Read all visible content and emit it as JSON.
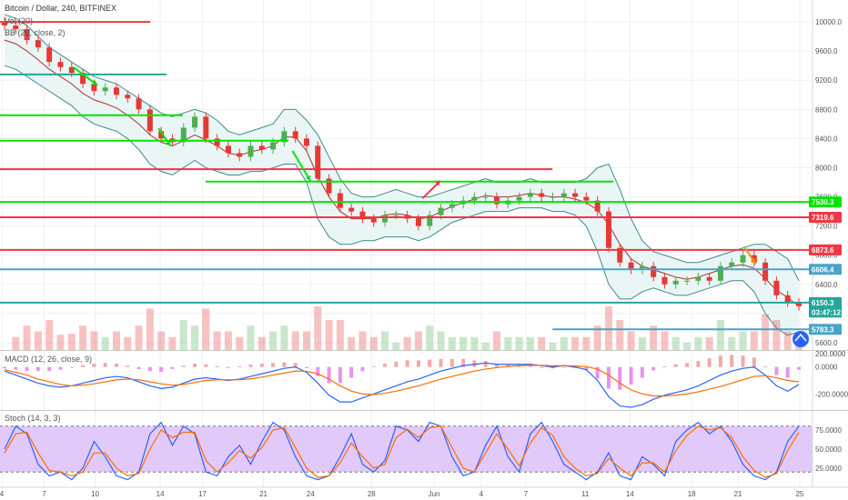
{
  "header": {
    "symbol_title": "Bitcoin / Dollar, 240, BITFINEX",
    "volume_label": "Vol (20)",
    "bb_label": "BB (20, close, 2)",
    "macd_label": "MACD (12, 26, close, 9)",
    "stoch_label": "Stoch (14, 3, 3)"
  },
  "colors": {
    "up": "#4caf50",
    "down": "#e53935",
    "bb_band": "#3d8b8b",
    "bb_fill": "#e6f4f4",
    "bb_mid": "#b03030",
    "red_level": "#f23645",
    "green_level": "#00e600",
    "teal_level": "#26a69a",
    "blue_level": "#4ba3c7",
    "macd_line": "#2962ff",
    "signal_line": "#ff6d00",
    "stoch_fill": "#e1c9f9",
    "stoch_k": "#2962ff",
    "stoch_d": "#ff6d00"
  },
  "icons": {
    "logo": "tradingview-logo-icon"
  },
  "chart_data": [
    {
      "type": "candlestick",
      "title": "Bitcoin / Dollar, 240, BITFINEX",
      "ylim": [
        5500,
        10300
      ],
      "y_ticks": [
        5600,
        6000,
        6400,
        6800,
        7200,
        7600,
        8000,
        8400,
        8800,
        9200,
        9600,
        10000
      ],
      "y_tick_labels": [
        "5600.0",
        "6000.0",
        "6400.0",
        "6800.0",
        "7200.0",
        "7600.0",
        "8000.0",
        "8400.0",
        "8800.0",
        "9200.0",
        "9600.0",
        "10000.0"
      ],
      "x_ticks": [
        "4",
        "7",
        "10",
        "14",
        "17",
        "21",
        "24",
        "28",
        "Jun",
        "4",
        "7",
        "11",
        "14",
        "18",
        "21",
        "25"
      ],
      "x_tick_pos": [
        0.0,
        0.052,
        0.115,
        0.195,
        0.247,
        0.322,
        0.38,
        0.455,
        0.532,
        0.59,
        0.645,
        0.718,
        0.773,
        0.849,
        0.906,
        0.982
      ],
      "price_points": [
        9950,
        9900,
        9750,
        9650,
        9450,
        9380,
        9300,
        9150,
        9050,
        9100,
        9000,
        8950,
        8800,
        8500,
        8400,
        8350,
        8550,
        8700,
        8400,
        8300,
        8200,
        8150,
        8300,
        8250,
        8350,
        8500,
        8400,
        8300,
        7850,
        7650,
        7450,
        7400,
        7300,
        7250,
        7350,
        7350,
        7300,
        7200,
        7350,
        7450,
        7500,
        7550,
        7600,
        7600,
        7500,
        7550,
        7600,
        7650,
        7600,
        7600,
        7650,
        7600,
        7550,
        7400,
        6900,
        6700,
        6600,
        6650,
        6500,
        6400,
        6450,
        6450,
        6500,
        6450,
        6650,
        6700,
        6800,
        6700,
        6450,
        6250,
        6150,
        6100
      ],
      "bb_upper": [
        10100,
        10050,
        9950,
        9800,
        9650,
        9550,
        9450,
        9350,
        9250,
        9200,
        9150,
        9050,
        8950,
        8850,
        8750,
        8700,
        8750,
        8800,
        8750,
        8650,
        8500,
        8450,
        8500,
        8550,
        8600,
        8800,
        8800,
        8650,
        8450,
        8150,
        7850,
        7650,
        7600,
        7600,
        7650,
        7700,
        7650,
        7600,
        7600,
        7650,
        7700,
        7750,
        7800,
        7850,
        7800,
        7800,
        7800,
        7850,
        7800,
        7800,
        7800,
        7800,
        7850,
        8000,
        8050,
        7700,
        7300,
        7000,
        6850,
        6800,
        6750,
        6700,
        6700,
        6750,
        6800,
        6850,
        6900,
        6950,
        6950,
        6850,
        6750,
        6450
      ],
      "bb_lower": [
        9400,
        9350,
        9250,
        9150,
        9050,
        8950,
        8850,
        8700,
        8600,
        8550,
        8500,
        8400,
        8250,
        8050,
        7950,
        7900,
        8000,
        8100,
        8000,
        7950,
        7900,
        7900,
        7950,
        7950,
        8000,
        8050,
        8050,
        7800,
        7300,
        7050,
        6950,
        6950,
        7000,
        7000,
        7050,
        7050,
        7050,
        7000,
        7050,
        7150,
        7250,
        7300,
        7350,
        7400,
        7400,
        7400,
        7450,
        7450,
        7450,
        7400,
        7400,
        7350,
        7200,
        6850,
        6400,
        6200,
        6200,
        6300,
        6350,
        6300,
        6250,
        6250,
        6300,
        6350,
        6400,
        6450,
        6450,
        6300,
        6000,
        5800,
        5700,
        5750
      ],
      "bb_basis": [
        9750,
        9700,
        9600,
        9480,
        9350,
        9250,
        9150,
        9020,
        8930,
        8880,
        8820,
        8720,
        8600,
        8450,
        8350,
        8300,
        8370,
        8450,
        8380,
        8300,
        8200,
        8170,
        8220,
        8250,
        8300,
        8420,
        8420,
        8230,
        7880,
        7600,
        7400,
        7300,
        7300,
        7300,
        7350,
        7370,
        7350,
        7300,
        7320,
        7400,
        7470,
        7520,
        7570,
        7620,
        7600,
        7600,
        7620,
        7650,
        7620,
        7600,
        7600,
        7570,
        7520,
        7420,
        7220,
        6950,
        6750,
        6650,
        6600,
        6550,
        6500,
        6470,
        6500,
        6550,
        6600,
        6650,
        6670,
        6620,
        6480,
        6320,
        6220,
        6100
      ],
      "horizontal_levels": [
        {
          "price": 10000,
          "color": "red",
          "x_end": 0.185
        },
        {
          "price": 9280,
          "color": "teal",
          "x_end": 0.205
        },
        {
          "price": 8720,
          "color": "green",
          "x_end": 0.225
        },
        {
          "price": 8370,
          "color": "green",
          "x_end": 0.355
        },
        {
          "price": 7980,
          "color": "red",
          "x_end": 0.68
        },
        {
          "price": 7810,
          "color": "green",
          "x_start": 0.253,
          "x_end": 0.755
        },
        {
          "price": 7530.3,
          "color": "green"
        },
        {
          "price": 7319.6,
          "color": "red"
        },
        {
          "price": 6873.6,
          "color": "red"
        },
        {
          "price": 6606.4,
          "color": "blue"
        },
        {
          "price": 6150.3,
          "color": "teal"
        },
        {
          "price": 5783.3,
          "color": "blue",
          "x_start": 0.68
        }
      ],
      "price_tags": [
        {
          "label": "7530.3",
          "price": 7530.3,
          "color": "green"
        },
        {
          "label": "7319.6",
          "price": 7319.6,
          "color": "red"
        },
        {
          "label": "6873.6",
          "price": 6873.6,
          "color": "red"
        },
        {
          "label": "6606.4",
          "price": 6606.4,
          "color": "blue"
        },
        {
          "label": "6150.3",
          "price": 6150.3,
          "color": "teal"
        },
        {
          "label": "03:47:12",
          "price": 6020,
          "color": "teal"
        },
        {
          "label": "5783.3",
          "price": 5783.3,
          "color": "blue"
        }
      ],
      "arrows": [
        {
          "x1": 0.09,
          "y1": 9380,
          "x2": 0.12,
          "y2": 9130,
          "color": "green"
        },
        {
          "x1": 0.195,
          "y1": 8540,
          "x2": 0.21,
          "y2": 8300,
          "color": "green"
        },
        {
          "x1": 0.36,
          "y1": 8230,
          "x2": 0.382,
          "y2": 7820,
          "color": "green"
        },
        {
          "x1": 0.52,
          "y1": 7580,
          "x2": 0.542,
          "y2": 7820,
          "color": "red"
        },
        {
          "x1": 0.917,
          "y1": 6900,
          "x2": 0.93,
          "y2": 6680,
          "color": "orange"
        }
      ]
    },
    {
      "type": "macd",
      "title": "MACD (12, 26, close, 9)",
      "ylim": [
        -320,
        120
      ],
      "y_ticks": [
        0,
        -200
      ],
      "y_tick_labels": [
        "0.0000",
        "-200.0000"
      ],
      "top_label": "200.0000",
      "macd": [
        -30,
        -60,
        -90,
        -120,
        -140,
        -150,
        -140,
        -120,
        -100,
        -80,
        -70,
        -80,
        -110,
        -140,
        -160,
        -150,
        -120,
        -90,
        -80,
        -90,
        -100,
        -90,
        -70,
        -50,
        -30,
        -10,
        0,
        -40,
        -120,
        -210,
        -260,
        -260,
        -230,
        -200,
        -170,
        -140,
        -110,
        -90,
        -60,
        -30,
        -10,
        10,
        20,
        30,
        20,
        20,
        20,
        20,
        10,
        0,
        10,
        0,
        -20,
        -100,
        -220,
        -290,
        -300,
        -280,
        -240,
        -210,
        -190,
        -170,
        -140,
        -100,
        -60,
        -30,
        -10,
        0,
        -60,
        -140,
        -180,
        -130
      ],
      "signal": [
        -20,
        -40,
        -60,
        -90,
        -110,
        -130,
        -140,
        -135,
        -125,
        -110,
        -95,
        -90,
        -95,
        -110,
        -125,
        -135,
        -130,
        -115,
        -100,
        -95,
        -95,
        -95,
        -88,
        -75,
        -60,
        -45,
        -30,
        -32,
        -50,
        -90,
        -140,
        -180,
        -200,
        -205,
        -195,
        -180,
        -160,
        -140,
        -115,
        -90,
        -70,
        -50,
        -30,
        -15,
        -5,
        5,
        10,
        12,
        12,
        10,
        10,
        8,
        3,
        -15,
        -60,
        -120,
        -170,
        -200,
        -215,
        -215,
        -210,
        -200,
        -185,
        -165,
        -145,
        -120,
        -95,
        -70,
        -65,
        -80,
        -100,
        -110
      ]
    },
    {
      "type": "stochastic",
      "title": "Stoch (14, 3, 3)",
      "ylim": [
        0,
        100
      ],
      "y_ticks": [
        75,
        50,
        25
      ],
      "y_tick_labels": [
        "75.0000",
        "50.0000",
        "25.0000"
      ],
      "band": [
        20,
        80
      ],
      "k": [
        50,
        80,
        70,
        30,
        15,
        20,
        10,
        25,
        60,
        40,
        15,
        10,
        20,
        70,
        85,
        55,
        80,
        70,
        20,
        15,
        40,
        55,
        30,
        60,
        85,
        75,
        40,
        15,
        10,
        15,
        40,
        70,
        30,
        20,
        35,
        80,
        75,
        60,
        85,
        80,
        40,
        15,
        20,
        55,
        80,
        40,
        20,
        70,
        85,
        60,
        30,
        20,
        10,
        20,
        45,
        15,
        10,
        40,
        30,
        15,
        60,
        75,
        85,
        70,
        80,
        60,
        30,
        15,
        10,
        20,
        60,
        80
      ],
      "d": [
        45,
        70,
        72,
        45,
        22,
        20,
        15,
        20,
        45,
        45,
        25,
        15,
        18,
        50,
        75,
        65,
        72,
        72,
        35,
        20,
        32,
        48,
        38,
        52,
        75,
        78,
        52,
        25,
        13,
        15,
        32,
        58,
        40,
        25,
        30,
        65,
        76,
        65,
        78,
        80,
        52,
        25,
        20,
        45,
        70,
        50,
        28,
        58,
        78,
        68,
        40,
        25,
        15,
        18,
        38,
        25,
        15,
        32,
        32,
        20,
        48,
        68,
        80,
        75,
        78,
        65,
        40,
        22,
        13,
        18,
        48,
        72
      ]
    }
  ]
}
